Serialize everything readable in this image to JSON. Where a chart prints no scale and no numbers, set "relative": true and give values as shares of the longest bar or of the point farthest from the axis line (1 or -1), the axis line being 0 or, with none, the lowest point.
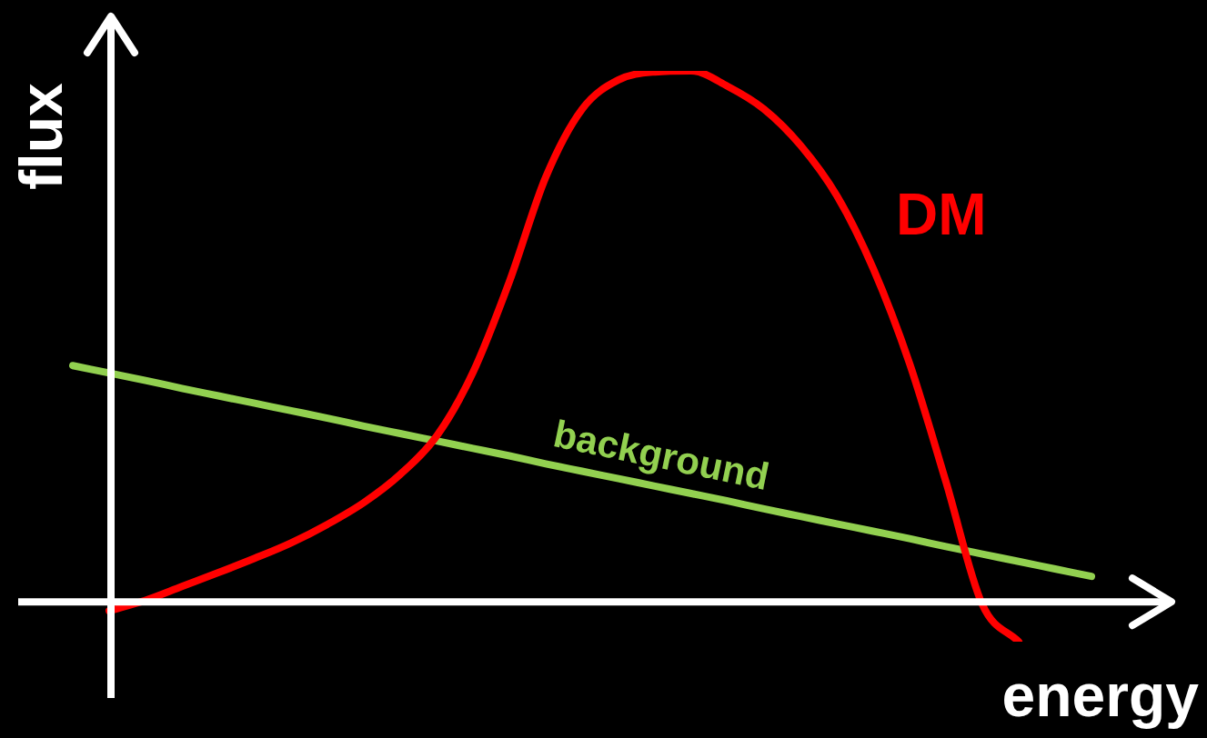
{
  "chart_data": {
    "type": "line",
    "xlabel": "energy",
    "ylabel": "flux",
    "relative": true,
    "categories": [
      null,
      null,
      null,
      null,
      null,
      null,
      null,
      null,
      null,
      null,
      null,
      null,
      null,
      null,
      null,
      null,
      null,
      null,
      null,
      null,
      null,
      null,
      null,
      null,
      null,
      null,
      null,
      null,
      null
    ],
    "series": [
      {
        "name": "DM",
        "color": "#ff0000",
        "values": [
          null,
          -0.017,
          0.003,
          0.029,
          0.055,
          0.082,
          0.111,
          0.146,
          0.187,
          0.24,
          0.312,
          0.432,
          0.603,
          0.8,
          0.928,
          0.983,
          0.998,
          1,
          0.971,
          0.928,
          0.86,
          0.765,
          0.628,
          0.449,
          0.226,
          -0.005,
          -0.075,
          null,
          null
        ]
      },
      {
        "name": "background",
        "color": "#92d050",
        "values": [
          0.445,
          0.431,
          0.417,
          0.402,
          0.388,
          0.374,
          0.36,
          0.346,
          0.331,
          0.317,
          0.303,
          0.289,
          0.275,
          0.26,
          0.246,
          0.232,
          0.218,
          0.204,
          0.19,
          0.175,
          0.161,
          0.147,
          0.133,
          0.119,
          0.104,
          0.09,
          0.076,
          0.062,
          0.048
        ]
      }
    ]
  }
}
